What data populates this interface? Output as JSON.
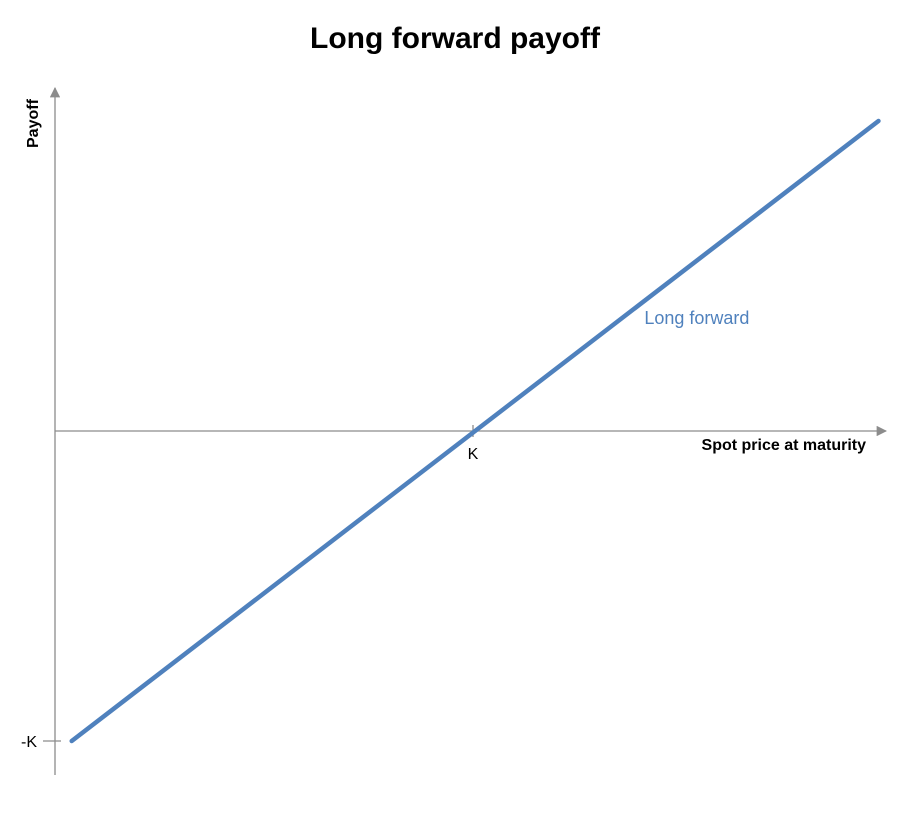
{
  "chart_data": {
    "type": "line",
    "title": "Long forward payoff",
    "xlabel": "Spot price at maturity",
    "ylabel": "Payoff",
    "x_ticks": [
      {
        "value": 1,
        "label": "K"
      }
    ],
    "y_ticks": [
      {
        "value": -1,
        "label": "-K"
      }
    ],
    "xlim": [
      0,
      2
    ],
    "ylim": [
      -1.1,
      1.1
    ],
    "series": [
      {
        "name": "Long forward",
        "color": "#4F81BD",
        "x": [
          0.04,
          1.97
        ],
        "y": [
          -1.0,
          1.0
        ]
      }
    ],
    "grid": false,
    "legend": "inline label"
  }
}
